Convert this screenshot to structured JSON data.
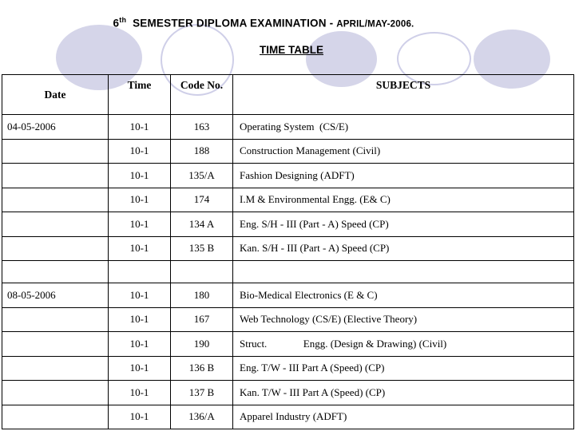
{
  "header": {
    "title_num": "6",
    "title_sup": "th",
    "title_main": "  SEMESTER DIPLOMA EXAMINATION - ",
    "title_date": "APRIL/MAY-2006.",
    "subtitle": "TIME TABLE"
  },
  "decor": {
    "circle_fill": "#d5d5e9",
    "circle_stroke": "#cfcfe8"
  },
  "table": {
    "headers": [
      "Date",
      "Time",
      "Code No.",
      "SUBJECTS"
    ],
    "rows": [
      {
        "date": "04-05-2006",
        "time": "10-1",
        "code": "163",
        "subject": "Operating System  (CS/E)"
      },
      {
        "date": "",
        "time": "10-1",
        "code": "188",
        "subject": "Construction Management (Civil)"
      },
      {
        "date": "",
        "time": "10-1",
        "code": "135/A",
        "subject": "Fashion Designing (ADFT)"
      },
      {
        "date": "",
        "time": "10-1",
        "code": "174",
        "subject": "I.M & Environmental Engg. (E& C)"
      },
      {
        "date": "",
        "time": "10-1",
        "code": "134 A",
        "subject": "Eng. S/H - III (Part - A) Speed (CP)"
      },
      {
        "date": "",
        "time": "10-1",
        "code": "135 B",
        "subject": "Kan. S/H - III (Part - A) Speed (CP)"
      },
      {
        "date": "",
        "time": "",
        "code": "",
        "subject": ""
      },
      {
        "date": "08-05-2006",
        "time": "10-1",
        "code": "180",
        "subject": "Bio-Medical Electronics (E & C)"
      },
      {
        "date": "",
        "time": "10-1",
        "code": "167",
        "subject": "Web Technology (CS/E) (Elective Theory)"
      },
      {
        "date": "",
        "time": "10-1",
        "code": "190",
        "subject": "Struct.              Engg. (Design & Drawing) (Civil)"
      },
      {
        "date": "",
        "time": "10-1",
        "code": "136 B",
        "subject": "Eng. T/W - III Part A (Speed) (CP)"
      },
      {
        "date": "",
        "time": "10-1",
        "code": "137 B",
        "subject": "Kan. T/W - III Part A (Speed) (CP)"
      },
      {
        "date": "",
        "time": "10-1",
        "code": "136/A",
        "subject": "Apparel Industry (ADFT)"
      }
    ]
  }
}
